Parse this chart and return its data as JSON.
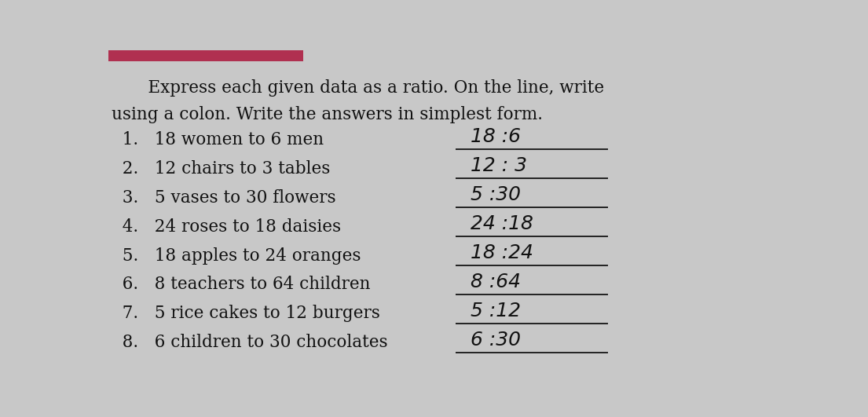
{
  "bg_color": "#c8c8c8",
  "title_line1": "    Express each given data as a ratio. On the line, write",
  "title_line2": "using a colon. Write the answers in simplest form.",
  "questions": [
    "  1.   18 women to 6 men",
    "  2.   12 chairs to 3 tables",
    "  3.   5 vases to 30 flowers",
    "  4.   24 roses to 18 daisies",
    "  5.   18 apples to 24 oranges",
    "  6.   8 teachers to 64 children",
    "  7.   5 rice cakes to 12 burgers",
    "  8.   6 children to 30 chocolates"
  ],
  "answers": [
    "18 :6",
    "12 : 3",
    "5 :30",
    "24 :18",
    "18 :24",
    "8 :64",
    "5 :12",
    "6 :30"
  ],
  "top_bar_color": "#b03050",
  "text_color": "#111111",
  "answer_color": "#111111",
  "line_color": "#222222",
  "title_fontsize": 15.5,
  "question_fontsize": 15.5,
  "answer_fontsize": 15
}
